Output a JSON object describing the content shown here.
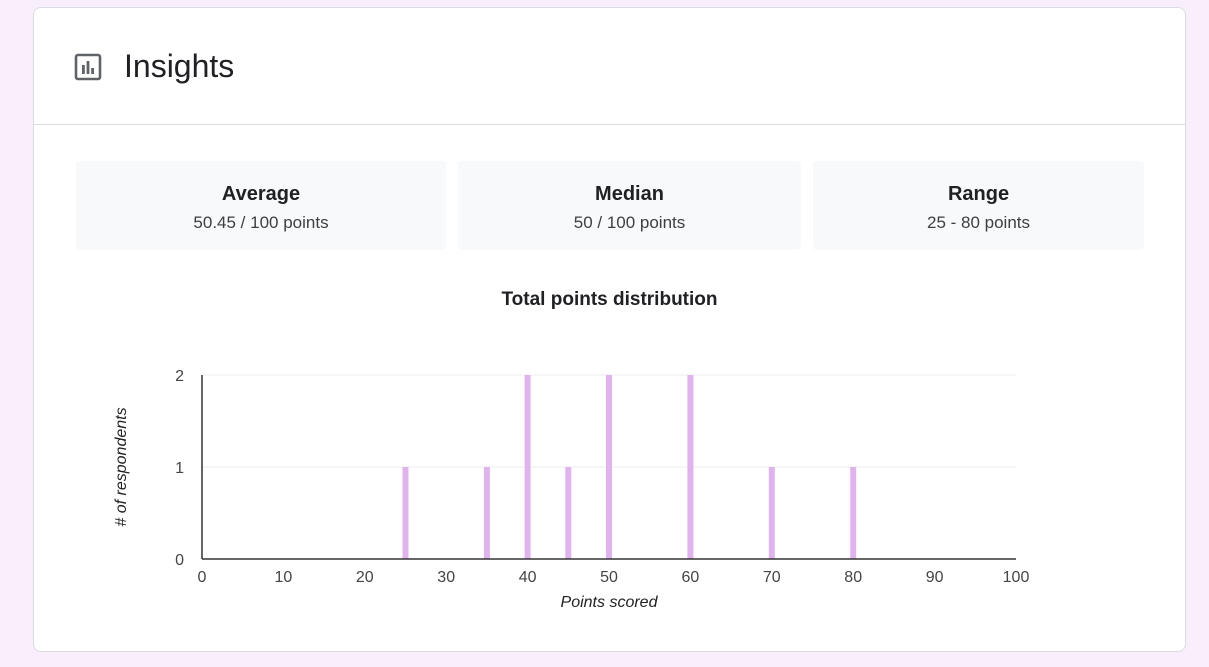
{
  "header": {
    "title": "Insights",
    "icon": "bar-chart-icon"
  },
  "stats": [
    {
      "label": "Average",
      "value": "50.45 / 100 points"
    },
    {
      "label": "Median",
      "value": "50 / 100 points"
    },
    {
      "label": "Range",
      "value": "25 - 80 points"
    }
  ],
  "colors": {
    "background": "#f9eefc",
    "bar": "#e1b3ee",
    "stat_bg": "#f8f9fa",
    "grid": "#eeeeee",
    "axis": "#333333"
  },
  "chart_data": {
    "type": "bar",
    "title": "Total points distribution",
    "xlabel": "Points scored",
    "ylabel": "# of respondents",
    "xlim": [
      0,
      100
    ],
    "ylim": [
      0,
      2
    ],
    "xticks": [
      0,
      10,
      20,
      30,
      40,
      50,
      60,
      70,
      80,
      90,
      100
    ],
    "yticks": [
      0,
      1,
      2
    ],
    "x": [
      25,
      35,
      40,
      45,
      50,
      60,
      70,
      80
    ],
    "values": [
      1,
      1,
      2,
      1,
      2,
      2,
      1,
      1
    ],
    "grid": true
  }
}
